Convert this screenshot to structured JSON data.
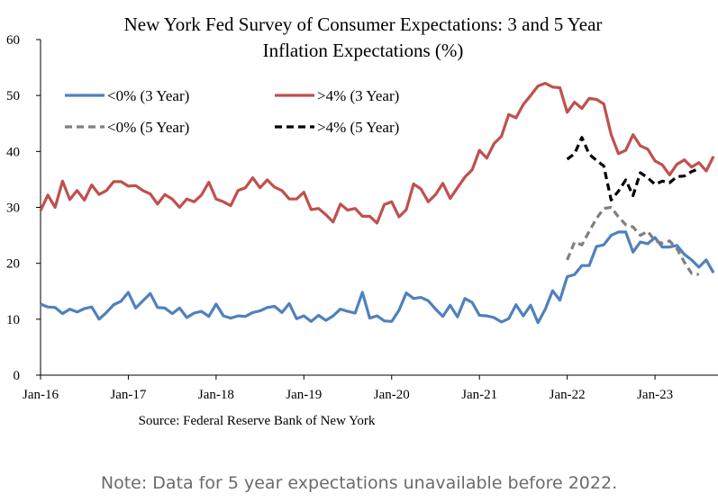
{
  "chart_data": {
    "type": "line",
    "title": "New York Fed Survey of Consumer Expectations: 3 and 5 Year",
    "subtitle": "Inflation Expectations (%)",
    "ylim": [
      0,
      60
    ],
    "y_ticks": [
      "0",
      "10",
      "20",
      "30",
      "40",
      "50",
      "60"
    ],
    "x_ticks": [
      "Jan-16",
      "Jan-17",
      "Jan-18",
      "Jan-19",
      "Jan-20",
      "Jan-21",
      "Jan-22",
      "Jan-23"
    ],
    "x_start": "Jan-16",
    "legend_position": "top-left, inside plot",
    "source": "Source: Federal Reserve Bank of New York",
    "series": [
      {
        "name": "<0% (3 Year)",
        "color": "#4f81bd",
        "dash": "solid",
        "start": "Jan-16",
        "values": [
          12.7,
          12.2,
          12.1,
          11.0,
          11.8,
          11.3,
          11.9,
          12.2,
          10.0,
          11.2,
          12.6,
          13.2,
          14.8,
          12.0,
          13.3,
          14.6,
          12.1,
          12.0,
          11.0,
          12.0,
          10.3,
          11.1,
          11.4,
          10.5,
          12.7,
          10.6,
          10.2,
          10.6,
          10.5,
          11.2,
          11.5,
          12.1,
          12.3,
          11.2,
          12.8,
          10.1,
          10.6,
          9.6,
          10.7,
          9.8,
          10.6,
          11.8,
          11.4,
          11.1,
          14.8,
          10.2,
          10.6,
          9.7,
          9.6,
          11.6,
          14.7,
          13.7,
          13.9,
          13.3,
          11.8,
          10.5,
          12.5,
          10.4,
          13.7,
          13.0,
          10.7,
          10.6,
          10.3,
          9.5,
          10.1,
          12.6,
          10.6,
          12.5,
          9.4,
          11.8,
          15.1,
          13.4,
          17.6,
          18.0,
          19.6,
          19.6,
          23.0,
          23.3,
          25.0,
          25.6,
          25.6,
          22.0,
          23.8,
          23.5,
          24.6,
          22.9,
          22.9,
          23.2,
          21.6,
          20.6,
          19.3,
          20.6,
          18.3
        ]
      },
      {
        "name": ">4% (3 Year)",
        "color": "#c0504d",
        "dash": "solid",
        "start": "Jan-16",
        "values": [
          29.4,
          32.2,
          30.0,
          34.7,
          31.4,
          33.0,
          31.3,
          34.0,
          32.3,
          33.0,
          34.6,
          34.6,
          33.8,
          33.9,
          33.0,
          32.4,
          30.6,
          32.3,
          31.5,
          30.0,
          31.5,
          31.0,
          32.2,
          34.5,
          31.5,
          31.0,
          30.3,
          33.0,
          33.5,
          35.3,
          33.5,
          34.9,
          33.6,
          33.0,
          31.5,
          31.5,
          32.7,
          29.6,
          29.8,
          28.7,
          27.4,
          30.6,
          29.5,
          29.8,
          28.4,
          28.4,
          27.2,
          30.5,
          31.0,
          28.3,
          29.6,
          34.2,
          33.3,
          31.0,
          32.3,
          34.3,
          31.6,
          33.5,
          35.4,
          36.7,
          40.2,
          38.8,
          41.4,
          42.7,
          46.6,
          46.0,
          48.4,
          50.0,
          51.7,
          52.2,
          51.5,
          51.4,
          47.0,
          48.8,
          47.7,
          49.5,
          49.3,
          48.5,
          43.0,
          39.6,
          40.2,
          43.0,
          41.0,
          40.4,
          38.3,
          37.6,
          35.8,
          37.7,
          38.5,
          37.2,
          38.0,
          36.5,
          39.1
        ]
      },
      {
        "name": "<0% (5 Year)",
        "color": "#808080",
        "dash": "dashed",
        "start": "Jan-22",
        "values": [
          20.6,
          23.8,
          23.3,
          25.7,
          28.0,
          29.8,
          30.0,
          28.3,
          26.9,
          26.5,
          25.0,
          25.7,
          24.0,
          23.6,
          24.0,
          22.6,
          20.2,
          18.2,
          18.0
        ]
      },
      {
        "name": ">4% (5 Year)",
        "color": "#000000",
        "dash": "dashed",
        "start": "Jan-22",
        "values": [
          38.6,
          39.6,
          42.5,
          39.5,
          38.4,
          37.4,
          31.3,
          32.9,
          34.9,
          32.1,
          36.2,
          35.3,
          34.1,
          34.7,
          34.4,
          35.5,
          35.6,
          36.4,
          36.9
        ]
      }
    ]
  },
  "footer": {
    "note": "Note: Data for 5 year expectations unavailable before 2022."
  }
}
